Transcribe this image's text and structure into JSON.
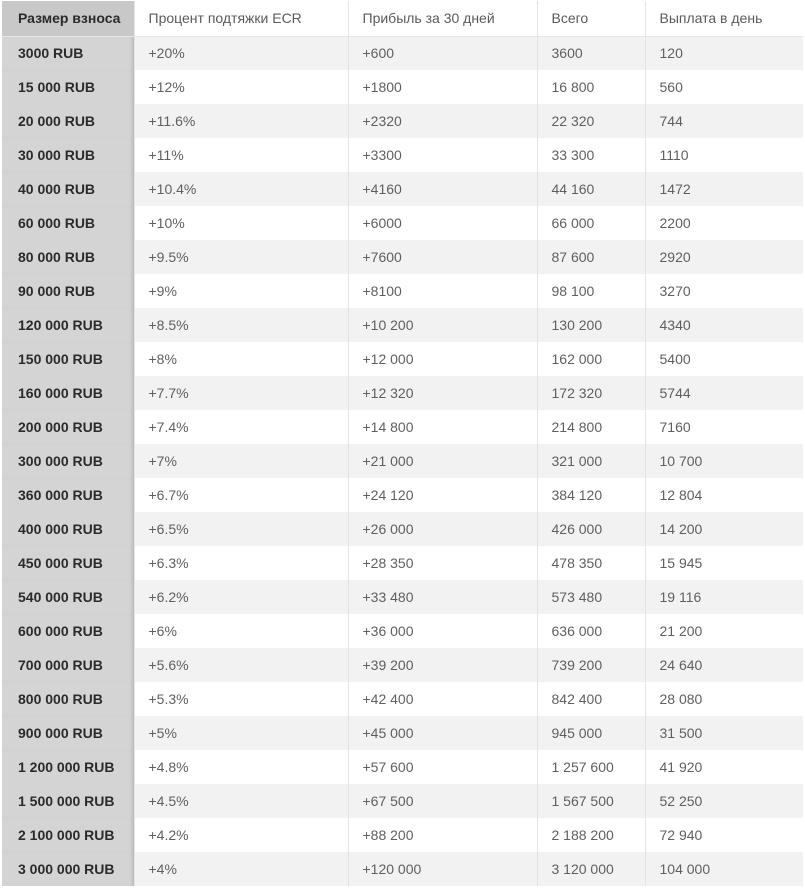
{
  "table": {
    "headers": [
      "Размер взноса",
      "Процент подтяжки ECR",
      "Прибыль за 30 дней",
      "Всего",
      "Выплата в день"
    ],
    "rows": [
      [
        "3000 RUB",
        "+20%",
        "+600",
        "3600",
        "120"
      ],
      [
        "15 000 RUB",
        "+12%",
        "+1800",
        "16 800",
        "560"
      ],
      [
        "20 000 RUB",
        "+11.6%",
        "+2320",
        "22 320",
        "744"
      ],
      [
        "30 000 RUB",
        "+11%",
        "+3300",
        "33 300",
        "1110"
      ],
      [
        "40 000 RUB",
        "+10.4%",
        "+4160",
        "44 160",
        "1472"
      ],
      [
        "60 000 RUB",
        "+10%",
        "+6000",
        "66 000",
        "2200"
      ],
      [
        "80 000 RUB",
        "+9.5%",
        "+7600",
        "87 600",
        "2920"
      ],
      [
        "90 000 RUB",
        "+9%",
        "+8100",
        "98 100",
        "3270"
      ],
      [
        "120 000 RUB",
        "+8.5%",
        "+10 200",
        "130 200",
        "4340"
      ],
      [
        "150 000 RUB",
        "+8%",
        "+12 000",
        "162 000",
        "5400"
      ],
      [
        "160 000 RUB",
        "+7.7%",
        "+12 320",
        "172 320",
        "5744"
      ],
      [
        "200 000 RUB",
        "+7.4%",
        "+14 800",
        "214 800",
        "7160"
      ],
      [
        "300 000 RUB",
        "+7%",
        "+21 000",
        "321 000",
        "10 700"
      ],
      [
        "360 000 RUB",
        "+6.7%",
        "+24 120",
        "384 120",
        "12 804"
      ],
      [
        "400 000 RUB",
        "+6.5%",
        "+26 000",
        "426 000",
        "14 200"
      ],
      [
        "450 000 RUB",
        "+6.3%",
        "+28 350",
        "478 350",
        "15 945"
      ],
      [
        "540 000 RUB",
        "+6.2%",
        "+33 480",
        "573 480",
        "19 116"
      ],
      [
        "600 000 RUB",
        "+6%",
        "+36 000",
        "636 000",
        "21 200"
      ],
      [
        "700 000 RUB",
        "+5.6%",
        "+39 200",
        "739 200",
        "24 640"
      ],
      [
        "800 000 RUB",
        "+5.3%",
        "+42 400",
        "842 400",
        "28 080"
      ],
      [
        "900 000 RUB",
        "+5%",
        "+45 000",
        "945 000",
        "31 500"
      ],
      [
        "1 200 000 RUB",
        "+4.8%",
        "+57 600",
        "1 257 600",
        "41 920"
      ],
      [
        "1 500 000 RUB",
        "+4.5%",
        "+67 500",
        "1 567 500",
        "52 250"
      ],
      [
        "2 100 000 RUB",
        "+4.2%",
        "+88 200",
        "2 188 200",
        "72 940"
      ],
      [
        "3 000 000 RUB",
        "+4%",
        "+120 000",
        "3 120 000",
        "104 000"
      ]
    ]
  }
}
